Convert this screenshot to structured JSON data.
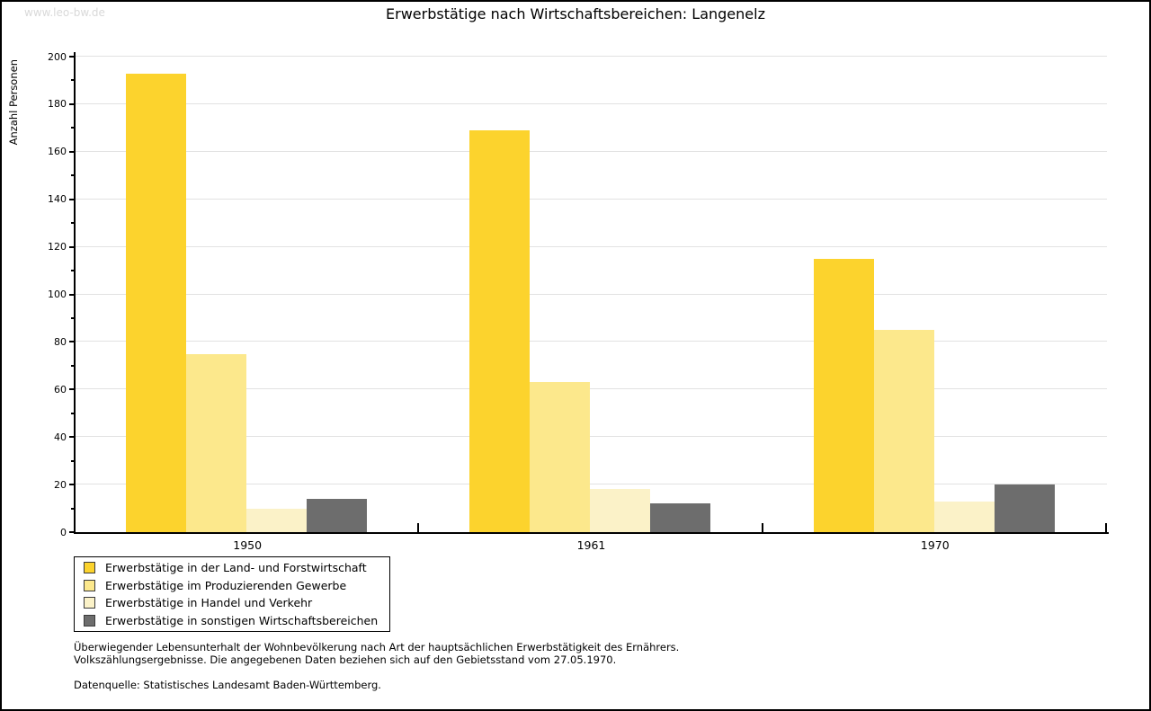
{
  "header": {
    "watermark": "www.leo-bw.de"
  },
  "chart_data": {
    "type": "bar",
    "title": "Erwerbstätige nach Wirtschaftsbereichen: Langenelz",
    "xlabel": "",
    "ylabel": "Anzahl Personen",
    "categories": [
      "1950",
      "1961",
      "1970"
    ],
    "series": [
      {
        "name": "Erwerbstätige in der Land- und Forstwirtschaft",
        "color": "#fcd32d",
        "values": [
          193,
          169,
          115
        ]
      },
      {
        "name": "Erwerbstätige im Produzierenden Gewerbe",
        "color": "#fce88c",
        "values": [
          75,
          63,
          85
        ]
      },
      {
        "name": "Erwerbstätige in Handel und Verkehr",
        "color": "#fbf2c8",
        "values": [
          10,
          18,
          13
        ]
      },
      {
        "name": "Erwerbstätige in sonstigen Wirtschaftsbereichen",
        "color": "#6d6d6d",
        "values": [
          14,
          12,
          20
        ]
      }
    ],
    "ylim": [
      0,
      200
    ],
    "ytick_major": 20,
    "ytick_minor": 10,
    "grid": "horizontal-major-only",
    "legend_position": "bottom-left"
  },
  "footnotes": {
    "line1": "Überwiegender Lebensunterhalt der Wohnbevölkerung nach Art der hauptsächlichen Erwerbstätigkeit des Ernährers.",
    "line2": "Volkszählungsergebnisse. Die angegebenen Daten beziehen sich auf den Gebietsstand vom 27.05.1970.",
    "source": "Datenquelle: Statistisches Landesamt Baden-Württemberg."
  },
  "colors": {
    "grid": "#e2e2e2",
    "axis": "#000000",
    "watermark": "#d9d9d9",
    "background": "#ffffff"
  }
}
